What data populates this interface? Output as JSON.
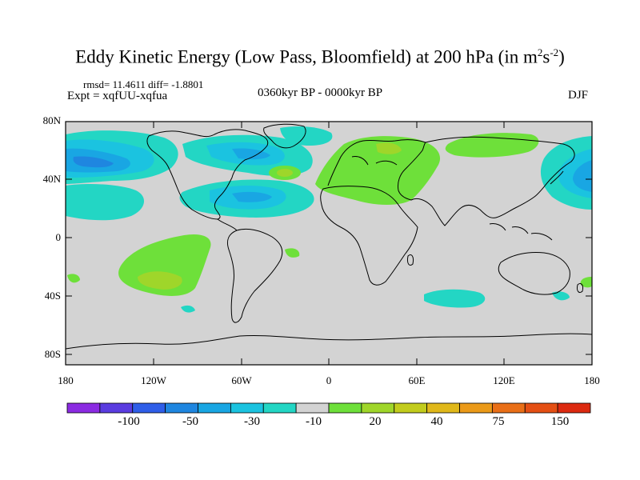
{
  "title": {
    "main": "Eddy Kinetic Energy (Low Pass, Bloomfield) at 200 hPa (in m",
    "sup1": "2",
    "mid": "s",
    "sup2": "-2",
    "end": ")"
  },
  "stats": "rmsd= 11.4611  diff= -1.8801",
  "expt": "Expt = xqfUU-xqfua",
  "period": "0360kyr BP - 0000kyr BP",
  "season": "DJF",
  "axes": {
    "y_ticks": [
      "80N",
      "40N",
      "0",
      "40S",
      "80S"
    ],
    "x_ticks": [
      "180",
      "120W",
      "60W",
      "0",
      "60E",
      "120E",
      "180"
    ]
  },
  "colorbar": {
    "colors": [
      "#8b2be2",
      "#5a3ce0",
      "#2f5ee8",
      "#1f86e0",
      "#19a6e3",
      "#1bc3e0",
      "#23d6c4",
      "#d3d3d3",
      "#6ee03a",
      "#9fd62a",
      "#c2cc1d",
      "#e0b81a",
      "#eb9a19",
      "#e96f17",
      "#e44f14",
      "#dc2a10"
    ],
    "labels": [
      "-100",
      "-50",
      "-30",
      "-10",
      "20",
      "40",
      "75",
      "150"
    ]
  },
  "colors": {
    "background_field": "#d3d3d3",
    "coast": "#000000"
  }
}
